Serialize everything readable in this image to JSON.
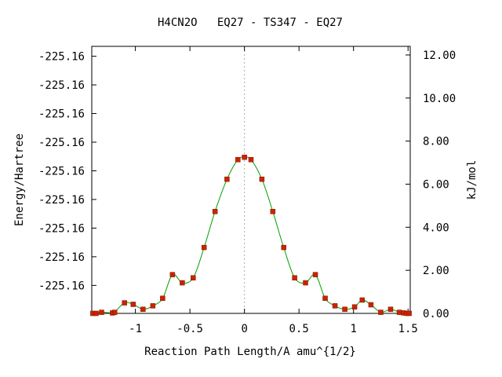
{
  "chart_data": {
    "type": "line",
    "title": "H4CN2O   EQ27 - TS347 - EQ27",
    "xlabel": "Reaction Path Length/A amu^{1/2}",
    "ylabel_left": "Energy/Hartree",
    "ylabel_right": "kJ/mol",
    "xlim": [
      -1.4,
      1.52
    ],
    "x_ticks": [
      -1,
      -0.5,
      0,
      0.5,
      1,
      1.5
    ],
    "x_tick_labels": [
      "-1",
      "-0.5",
      "0",
      "0.5",
      "1",
      "1.5"
    ],
    "y_right_lim": [
      0,
      12.4
    ],
    "y_right_ticks": [
      0,
      2,
      4,
      6,
      8,
      10,
      12
    ],
    "y_right_tick_labels": [
      "0.00",
      "2.00",
      "4.00",
      "6.00",
      "8.00",
      "10.00",
      "12.00"
    ],
    "y_left_tick_values_kjmol": [
      1.3,
      2.63,
      3.96,
      5.29,
      6.62,
      7.95,
      9.28,
      10.61,
      11.94
    ],
    "y_left_tick_labels": [
      "-225.16",
      "-225.16",
      "-225.16",
      "-225.16",
      "-225.16",
      "-225.16",
      "-225.16",
      "-225.16",
      "-225.16"
    ],
    "vertical_reference_x": 0,
    "grid": false,
    "colors": {
      "line": "#00a000",
      "marker": "#cc2200",
      "refline": "#aaaaaa"
    },
    "series": [
      {
        "x": [
          -1.39,
          -1.36,
          -1.31,
          -1.21,
          -1.19,
          -1.1,
          -1.02,
          -0.93,
          -0.84,
          -0.75,
          -0.66,
          -0.57,
          -0.47,
          -0.37,
          -0.27,
          -0.16,
          -0.06,
          0,
          0.06,
          0.16,
          0.26,
          0.36,
          0.46,
          0.56,
          0.65,
          0.74,
          0.83,
          0.92,
          1.01,
          1.08,
          1.16,
          1.25,
          1.34,
          1.42,
          1.46,
          1.49,
          1.51
        ],
        "values": [
          0.0,
          0.0,
          0.05,
          0.02,
          0.05,
          0.49,
          0.42,
          0.19,
          0.35,
          0.7,
          1.8,
          1.42,
          1.65,
          3.06,
          4.73,
          6.23,
          7.14,
          7.25,
          7.14,
          6.23,
          4.73,
          3.06,
          1.65,
          1.42,
          1.8,
          0.7,
          0.35,
          0.19,
          0.3,
          0.62,
          0.4,
          0.05,
          0.19,
          0.05,
          0.02,
          0.0,
          0.0
        ]
      }
    ]
  }
}
